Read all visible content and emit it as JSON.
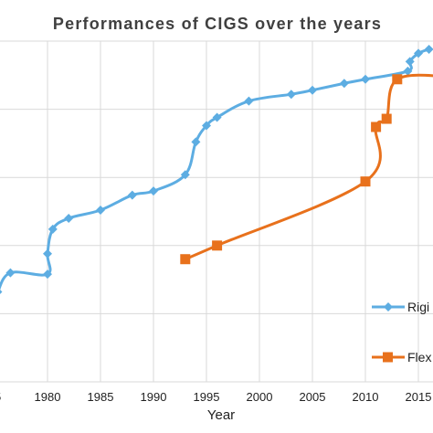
{
  "chart_data": {
    "type": "line",
    "title": "Performances of CIGS over the years",
    "xlabel": "Year",
    "ylabel": "",
    "xlim": [
      1975,
      2018
    ],
    "ylim": [
      0,
      25
    ],
    "x_ticks": [
      "75",
      "1980",
      "1985",
      "1990",
      "1995",
      "2000",
      "2005",
      "2010",
      "2015"
    ],
    "x_tick_values": [
      1975,
      1980,
      1985,
      1990,
      1995,
      2000,
      2005,
      2010,
      2015
    ],
    "y_grid_values": [
      5,
      10,
      15,
      20,
      25
    ],
    "grid": "both",
    "legend_position": "right",
    "series": [
      {
        "name": "Rigi",
        "color": "#5dade2",
        "marker": "diamond",
        "points": [
          [
            1975.3,
            6.6
          ],
          [
            1976.5,
            8.0
          ],
          [
            1980.0,
            7.9
          ],
          [
            1980.0,
            9.4
          ],
          [
            1980.5,
            11.2
          ],
          [
            1982.0,
            12.0
          ],
          [
            1985.0,
            12.6
          ],
          [
            1988.0,
            13.7
          ],
          [
            1990.0,
            14.0
          ],
          [
            1993.0,
            15.2
          ],
          [
            1994.0,
            17.6
          ],
          [
            1995.0,
            18.8
          ],
          [
            1996.0,
            19.4
          ],
          [
            1999.0,
            20.6
          ],
          [
            2003.0,
            21.1
          ],
          [
            2005.0,
            21.4
          ],
          [
            2008.0,
            21.9
          ],
          [
            2010.0,
            22.2
          ],
          [
            2014.0,
            22.8
          ],
          [
            2014.2,
            23.5
          ],
          [
            2015.0,
            24.1
          ],
          [
            2016.0,
            24.4
          ]
        ]
      },
      {
        "name": "Flex",
        "color": "#e8711c",
        "marker": "square",
        "points": [
          [
            1993.0,
            9.0
          ],
          [
            1996.0,
            10.0
          ],
          [
            2010.0,
            14.7
          ],
          [
            2011.0,
            18.7
          ],
          [
            2012.0,
            19.3
          ],
          [
            2013.0,
            22.2
          ],
          [
            2018.0,
            22.4
          ]
        ]
      }
    ]
  }
}
